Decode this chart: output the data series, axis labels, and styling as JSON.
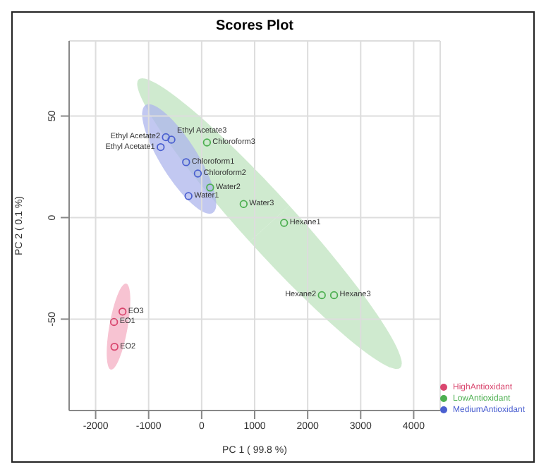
{
  "chart_data": {
    "type": "scatter",
    "title": "Scores Plot",
    "xlabel": "PC 1 ( 99.8 %)",
    "ylabel": "PC 2 ( 0.1 %)",
    "xlim": [
      -2500,
      4500
    ],
    "ylim": [
      -95,
      87
    ],
    "xticks": [
      -2000,
      -1000,
      0,
      1000,
      2000,
      3000,
      4000
    ],
    "yticks": [
      -50,
      0,
      50
    ],
    "grid": true,
    "legend": "right",
    "marker": "circle",
    "series": [
      {
        "name": "HighAntioxidant",
        "color": "#d9466e",
        "x": [
          -1653,
          -1645,
          -1493
        ],
        "values": [
          -51.4,
          -63.6,
          -46.3
        ]
      },
      {
        "name": "LowAntioxidant",
        "color": "#4caf50",
        "x": [
          100,
          160,
          792,
          1555,
          2267,
          2498
        ],
        "values": [
          37,
          14.8,
          6.7,
          -2.6,
          -38.2,
          -38.2
        ]
      },
      {
        "name": "MediumAntioxidant",
        "color": "#4a5fd0",
        "x": [
          -773,
          -675,
          -570,
          -293,
          -72,
          -248
        ],
        "values": [
          34.7,
          39.6,
          38.4,
          27.3,
          21.7,
          10.6
        ]
      }
    ],
    "annotations": [
      {
        "text": "EO1",
        "x": -1653,
        "y": -51.4
      },
      {
        "text": "EO2",
        "x": -1645,
        "y": -63.6
      },
      {
        "text": "EO3",
        "x": -1493,
        "y": -46.3
      },
      {
        "text": "Chloroform3",
        "x": 100,
        "y": 37
      },
      {
        "text": "Water2",
        "x": 160,
        "y": 14.8
      },
      {
        "text": "Water3",
        "x": 792,
        "y": 6.7
      },
      {
        "text": "Hexane1",
        "x": 1555,
        "y": -2.6
      },
      {
        "text": "Hexane2",
        "x": 2267,
        "y": -38.2
      },
      {
        "text": "Hexane3",
        "x": 2498,
        "y": -38.2
      },
      {
        "text": "Ethyl Acetate1",
        "x": -773,
        "y": 34.7
      },
      {
        "text": "Ethyl Acetate2",
        "x": -675,
        "y": 39.6
      },
      {
        "text": "Ethyl Acetate3",
        "x": -570,
        "y": 38.4
      },
      {
        "text": "Chloroform1",
        "x": -293,
        "y": 27.3
      },
      {
        "text": "Chloroform2",
        "x": -72,
        "y": 21.7
      },
      {
        "text": "Water1",
        "x": -248,
        "y": 10.6
      }
    ]
  }
}
